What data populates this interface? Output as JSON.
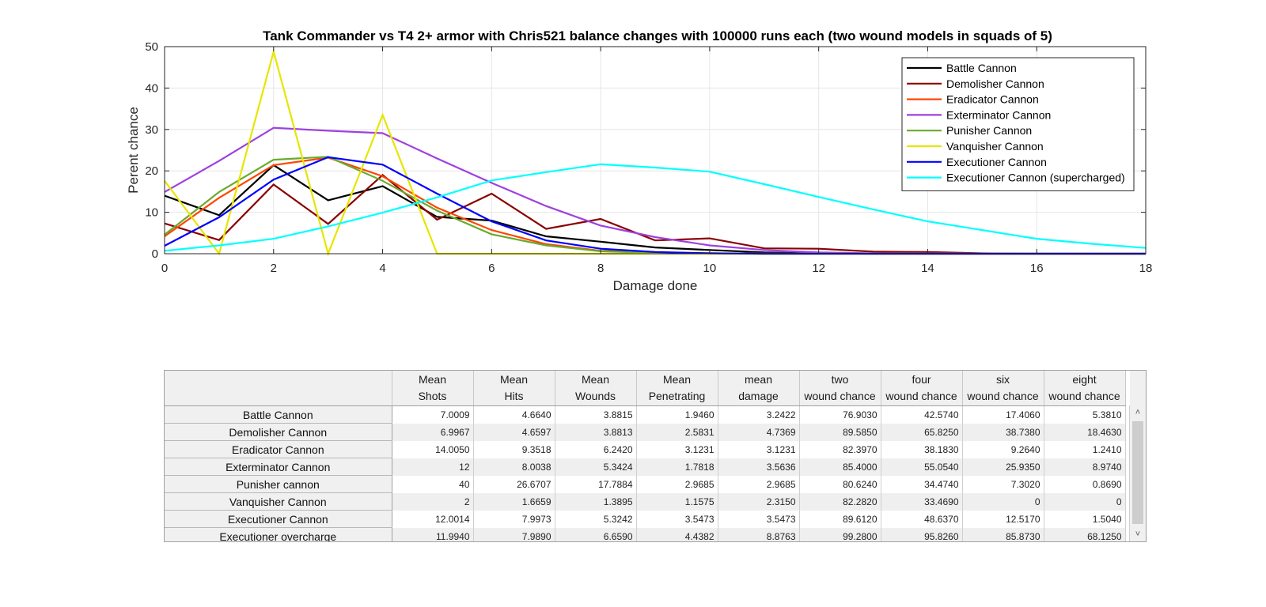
{
  "chart_data": {
    "type": "line",
    "title": "Tank Commander vs T4 2+ armor with Chris521 balance changes with 100000 runs each (two wound models in squads of 5)",
    "xlabel": "Damage done",
    "ylabel": "Perent chance",
    "xlim": [
      0,
      18
    ],
    "ylim": [
      0,
      50
    ],
    "xticks": [
      0,
      2,
      4,
      6,
      8,
      10,
      12,
      14,
      16,
      18
    ],
    "yticks": [
      0,
      10,
      20,
      30,
      40,
      50
    ],
    "grid": true,
    "legend_position": "top-right",
    "x": [
      0,
      1,
      2,
      3,
      4,
      5,
      6,
      7,
      8,
      9,
      10,
      11,
      12,
      13,
      14,
      15,
      16,
      17,
      18
    ],
    "series": [
      {
        "name": "Battle Cannon",
        "color": "#000000",
        "values": [
          14.0,
          9.3,
          21.4,
          12.9,
          16.3,
          8.9,
          8.0,
          4.2,
          2.9,
          1.5,
          0.9,
          0.3,
          0.1,
          0,
          0,
          0,
          0,
          0,
          0
        ]
      },
      {
        "name": "Demolisher Cannon",
        "color": "#8b0000",
        "values": [
          7.3,
          3.3,
          16.7,
          7.2,
          19.0,
          8.2,
          14.5,
          6.0,
          8.4,
          3.2,
          3.7,
          1.3,
          1.2,
          0.5,
          0.4,
          0.1,
          0,
          0,
          0
        ]
      },
      {
        "name": "Eradicator Cannon",
        "color": "#ff4500",
        "values": [
          4.2,
          13.5,
          21.4,
          23.2,
          18.7,
          11.1,
          5.7,
          2.3,
          0.7,
          0.3,
          0.1,
          0,
          0,
          0,
          0,
          0,
          0,
          0,
          0
        ]
      },
      {
        "name": "Exterminator Cannon",
        "color": "#9f40df",
        "values": [
          14.9,
          22.4,
          30.4,
          29.7,
          29.1,
          23.0,
          17.1,
          11.5,
          6.8,
          4.0,
          2.0,
          0.9,
          0.3,
          0.1,
          0,
          0,
          0,
          0,
          0
        ]
      },
      {
        "name": "Punisher Cannon",
        "color": "#6aaa2e",
        "values": [
          4.6,
          14.9,
          22.7,
          23.4,
          17.6,
          10.4,
          4.7,
          2.0,
          0.6,
          0.2,
          0.1,
          0,
          0,
          0,
          0,
          0,
          0,
          0,
          0
        ]
      },
      {
        "name": "Vanquisher Cannon",
        "color": "#e6e600",
        "values": [
          17.6,
          0,
          48.8,
          0,
          33.5,
          0,
          0,
          0,
          0,
          0,
          0,
          0,
          0,
          0,
          0,
          0,
          0,
          0,
          0
        ]
      },
      {
        "name": "Executioner Cannon",
        "color": "#0000ff",
        "values": [
          1.9,
          8.8,
          17.9,
          23.3,
          21.5,
          14.5,
          7.8,
          3.2,
          1.2,
          0.4,
          0.1,
          0,
          0,
          0,
          0,
          0,
          0,
          0,
          0
        ]
      },
      {
        "name": "Executioner Cannon (supercharged)",
        "color": "#00ffff",
        "values": [
          0.7,
          2.0,
          3.6,
          6.6,
          9.9,
          13.6,
          17.7,
          19.7,
          21.6,
          20.8,
          19.8,
          16.8,
          13.7,
          10.7,
          7.8,
          5.7,
          3.6,
          2.4,
          1.4
        ]
      }
    ]
  },
  "table": {
    "headers": [
      [
        "Mean",
        "Shots"
      ],
      [
        "Mean",
        "Hits"
      ],
      [
        "Mean",
        "Wounds"
      ],
      [
        "Mean",
        "Penetrating"
      ],
      [
        "mean",
        "damage"
      ],
      [
        "two",
        "wound chance"
      ],
      [
        "four",
        "wound chance"
      ],
      [
        "six",
        "wound chance"
      ],
      [
        "eight",
        "wound chance"
      ]
    ],
    "rows": [
      {
        "name": "Battle Cannon",
        "cells": [
          "7.0009",
          "4.6640",
          "3.8815",
          "1.9460",
          "3.2422",
          "76.9030",
          "42.5740",
          "17.4060",
          "5.3810"
        ]
      },
      {
        "name": "Demolisher Cannon",
        "cells": [
          "6.9967",
          "4.6597",
          "3.8813",
          "2.5831",
          "4.7369",
          "89.5850",
          "65.8250",
          "38.7380",
          "18.4630"
        ]
      },
      {
        "name": "Eradicator Cannon",
        "cells": [
          "14.0050",
          "9.3518",
          "6.2420",
          "3.1231",
          "3.1231",
          "82.3970",
          "38.1830",
          "9.2640",
          "1.2410"
        ]
      },
      {
        "name": "Exterminator Cannon",
        "cells": [
          "12",
          "8.0038",
          "5.3424",
          "1.7818",
          "3.5636",
          "85.4000",
          "55.0540",
          "25.9350",
          "8.9740"
        ]
      },
      {
        "name": "Punisher cannon",
        "cells": [
          "40",
          "26.6707",
          "17.7884",
          "2.9685",
          "2.9685",
          "80.6240",
          "34.4740",
          "7.3020",
          "0.8690"
        ]
      },
      {
        "name": "Vanquisher Cannon",
        "cells": [
          "2",
          "1.6659",
          "1.3895",
          "1.1575",
          "2.3150",
          "82.2820",
          "33.4690",
          "0",
          "0"
        ]
      },
      {
        "name": "Executioner Cannon",
        "cells": [
          "12.0014",
          "7.9973",
          "5.3242",
          "3.5473",
          "3.5473",
          "89.6120",
          "48.6370",
          "12.5170",
          "1.5040"
        ]
      },
      {
        "name": "Executioner overcharge",
        "cells": [
          "11.9940",
          "7.9890",
          "6.6590",
          "4.4382",
          "8.8763",
          "99.2800",
          "95.8260",
          "85.8730",
          "68.1250"
        ]
      }
    ]
  }
}
